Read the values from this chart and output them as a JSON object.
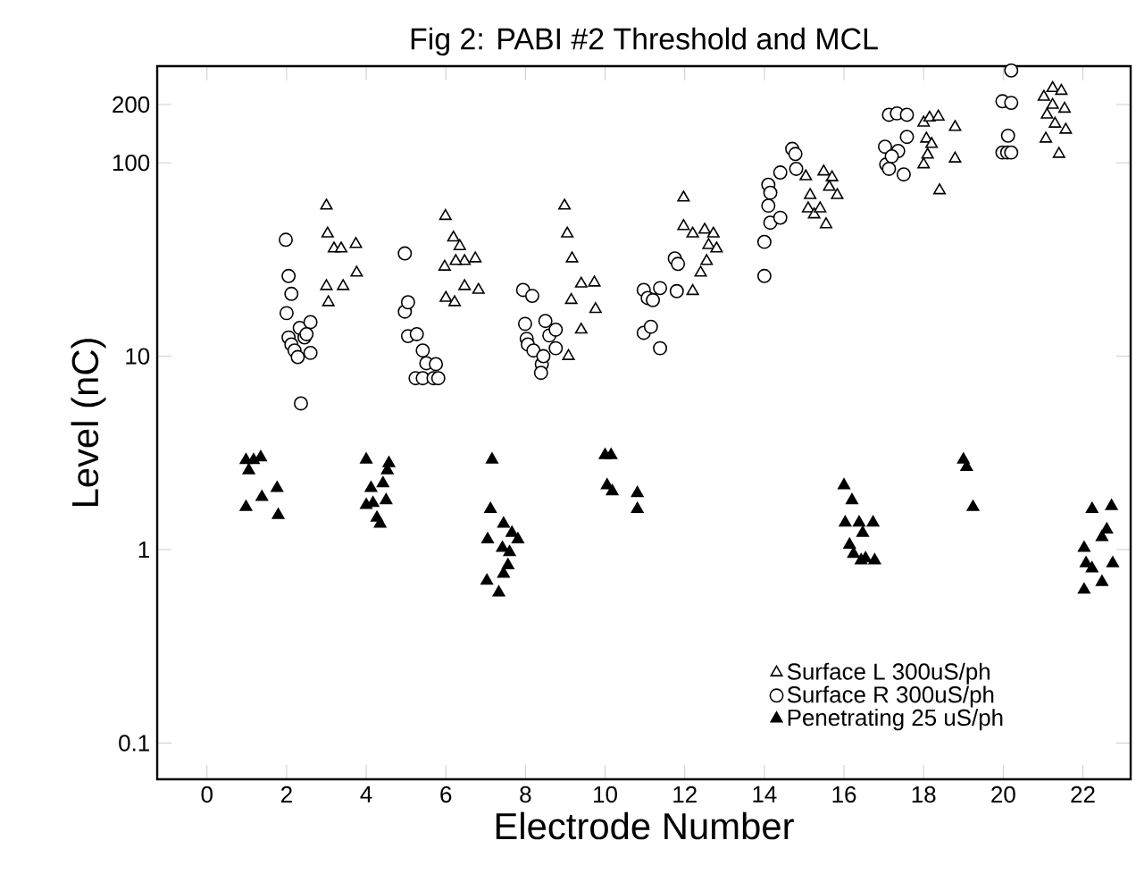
{
  "chart_data": {
    "type": "scatter",
    "title": "Fig 2: PABI #2 Threshold and MCL",
    "xlabel": "Electrode Number",
    "ylabel": "Level (nC)",
    "xlim": [
      -1.25,
      23.2
    ],
    "ylim": [
      0.065,
      316
    ],
    "log": "y",
    "legend": "bottom right",
    "grid": false,
    "xticks": [
      0,
      2,
      4,
      6,
      8,
      10,
      12,
      14,
      16,
      18,
      20,
      22
    ],
    "yticks": [
      {
        "value": 0.1,
        "label": "0.1"
      },
      1,
      10,
      100,
      200
    ],
    "series": [
      {
        "name": "Surface L 300uS/ph",
        "color": "#000000",
        "marker": "triangle",
        "x": [
          3.0,
          3.03,
          3.05,
          3.0,
          3.19,
          3.37,
          3.42,
          3.74,
          3.76,
          5.99,
          6.19,
          5.97,
          6.0,
          6.22,
          6.35,
          6.47,
          6.47,
          6.74,
          6.82,
          6.25,
          8.98,
          9.05,
          9.17,
          9.15,
          9.08,
          9.4,
          9.4,
          9.73,
          9.76,
          11.97,
          11.97,
          12.2,
          12.2,
          12.4,
          12.5,
          12.6,
          12.72,
          12.8,
          12.55,
          15.04,
          15.15,
          15.1,
          15.25,
          15.49,
          15.55,
          15.4,
          15.7,
          15.83,
          15.63,
          18.0,
          18.0,
          18.15,
          18.07,
          18.1,
          18.37,
          18.4,
          18.79,
          18.79,
          18.2,
          21.02,
          21.24,
          21.46,
          21.1,
          21.24,
          21.54,
          21.07,
          21.4,
          21.57,
          21.3
        ],
        "values": [
          60,
          43,
          19,
          23,
          36,
          36,
          23,
          38,
          27,
          53,
          41,
          29,
          20,
          19,
          37,
          31,
          23,
          32,
          22,
          31,
          60,
          43,
          32,
          19.5,
          10,
          23.7,
          13.7,
          24,
          17.5,
          66,
          47,
          43,
          21.7,
          27,
          45,
          37.5,
          43,
          36,
          31,
          85,
          68,
          58,
          54,
          90,
          48,
          58,
          84,
          68,
          75,
          161,
          98,
          171,
          133,
          110,
          173,
          72,
          153,
          105,
          125,
          219,
          243,
          235,
          177,
          199,
          190,
          133,
          111,
          148,
          159
        ]
      },
      {
        "name": "Surface R 300uS/ph",
        "color": "#000000",
        "marker": "circle",
        "x": [
          1.98,
          2.0,
          2.05,
          2.12,
          2.05,
          2.12,
          2.2,
          2.28,
          2.36,
          2.33,
          2.45,
          2.6,
          2.6,
          2.5,
          4.97,
          4.97,
          5.05,
          5.05,
          5.27,
          5.42,
          5.51,
          5.75,
          5.24,
          5.42,
          5.69,
          5.81,
          7.94,
          8.17,
          7.99,
          8.03,
          8.06,
          8.2,
          8.41,
          8.39,
          8.5,
          8.6,
          8.76,
          8.76,
          8.45,
          10.97,
          11.07,
          10.97,
          11.15,
          11.2,
          11.38,
          11.38,
          11.75,
          11.83,
          11.8,
          14.0,
          14.0,
          14.1,
          14.15,
          14.1,
          14.15,
          14.4,
          14.4,
          14.7,
          14.78,
          14.8,
          17.03,
          17.13,
          17.33,
          17.58,
          17.36,
          17.06,
          17.13,
          17.5,
          17.58,
          17.2,
          20.2,
          19.98,
          20.2,
          20.12,
          19.98,
          20.1,
          20.2
        ],
        "values": [
          40,
          16.7,
          26,
          21,
          12.5,
          11.5,
          10.7,
          9.9,
          5.7,
          14,
          12.5,
          15,
          10.4,
          13,
          34,
          17,
          19,
          12.7,
          13,
          10.7,
          9.2,
          9.1,
          7.7,
          7.7,
          7.7,
          7.7,
          22,
          20.5,
          14.7,
          12.3,
          11.5,
          10.7,
          9.1,
          8.2,
          15.2,
          12.8,
          13.7,
          11,
          10,
          22,
          20,
          13.2,
          14.2,
          19.5,
          22.5,
          11,
          32,
          30,
          21.7,
          39,
          26,
          77,
          70,
          60,
          49,
          52,
          89,
          118,
          111,
          93,
          121,
          177,
          180,
          177,
          115,
          98,
          93,
          87,
          136,
          108,
          300,
          208,
          204,
          138,
          113,
          113,
          113
        ]
      },
      {
        "name": "Penetrating 25 uS/ph",
        "color": "#000000",
        "marker": "triangle",
        "x": [
          0.98,
          1.17,
          1.35,
          1.05,
          0.98,
          1.38,
          1.76,
          1.79,
          4.0,
          4.0,
          4.12,
          4.17,
          4.27,
          4.35,
          4.5,
          4.57,
          4.53,
          4.42,
          7.16,
          7.12,
          7.05,
          7.03,
          7.33,
          7.45,
          7.42,
          7.56,
          7.45,
          7.66,
          7.81,
          7.6,
          10.0,
          10.15,
          10.05,
          10.18,
          10.81,
          10.81,
          16.0,
          16.2,
          16.03,
          16.14,
          16.38,
          16.24,
          16.47,
          16.54,
          16.73,
          16.77,
          16.43,
          19.0,
          19.08,
          19.24,
          22.03,
          22.03,
          22.23,
          22.23,
          22.48,
          22.48,
          22.6,
          22.72,
          22.75,
          22.08
        ],
        "values": [
          2.9,
          2.9,
          3.0,
          2.57,
          1.66,
          1.87,
          2.08,
          1.51,
          2.92,
          1.7,
          2.08,
          1.74,
          1.46,
          1.36,
          1.8,
          2.8,
          2.57,
          2.2,
          2.92,
          1.62,
          1.13,
          0.69,
          0.6,
          1.36,
          1.02,
          0.83,
          0.75,
          1.22,
          1.13,
          0.97,
          3.08,
          3.08,
          2.15,
          2.0,
          1.96,
          1.62,
          2.15,
          1.8,
          1.38,
          1.06,
          1.38,
          0.95,
          1.22,
          0.9,
          1.38,
          0.88,
          0.88,
          2.92,
          2.67,
          1.66,
          1.02,
          0.62,
          1.62,
          0.8,
          1.16,
          0.68,
          1.27,
          1.68,
          0.85,
          0.85
        ]
      }
    ]
  }
}
